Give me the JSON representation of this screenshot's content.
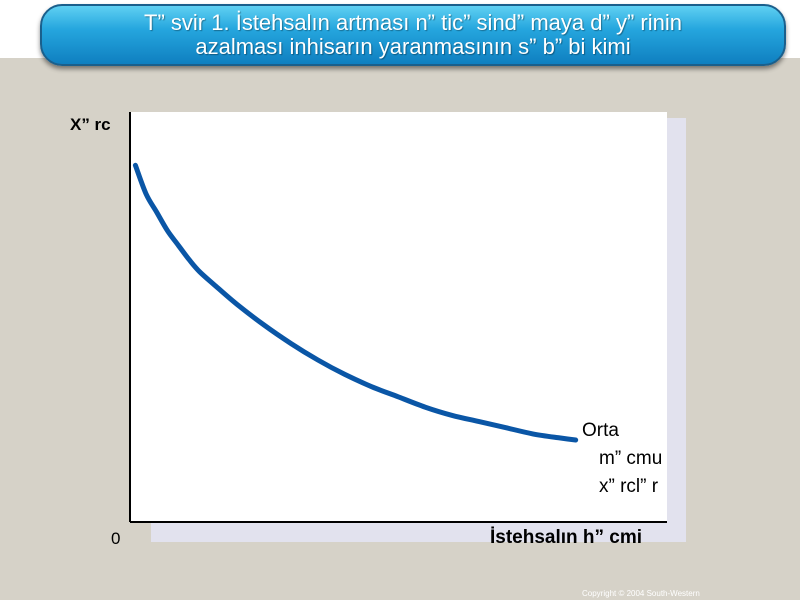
{
  "slide": {
    "title": "T” svir 1. İstehsalın artması n” tic” sind”  maya d” y” rinin\nazalması inhisarın yaranmasının s” b” bi kimi",
    "copyright": "Copyright © 2004  South-Western"
  },
  "chart_data": {
    "type": "line",
    "title": "",
    "xlabel": "İstehsalın h” cmi",
    "ylabel": "X” rc",
    "origin_label": "0",
    "axis_ticks": "none",
    "xlim": [
      0,
      100
    ],
    "ylim": [
      0,
      100
    ],
    "series": [
      {
        "label_lines": [
          "Orta",
          "m” cmu",
          "x” rcl” r"
        ],
        "color": "#0a56a6",
        "x": [
          1,
          3,
          5,
          7,
          9,
          11,
          13,
          16,
          20,
          25,
          30,
          35,
          40,
          45,
          50,
          55,
          60,
          65,
          70,
          75,
          80,
          83
        ],
        "y": [
          87,
          80,
          75.5,
          71,
          67.5,
          64,
          61,
          57.5,
          53,
          48,
          43.5,
          39.5,
          36,
          33,
          30.5,
          28,
          26,
          24.5,
          23,
          21.5,
          20.5,
          20
        ]
      }
    ]
  }
}
